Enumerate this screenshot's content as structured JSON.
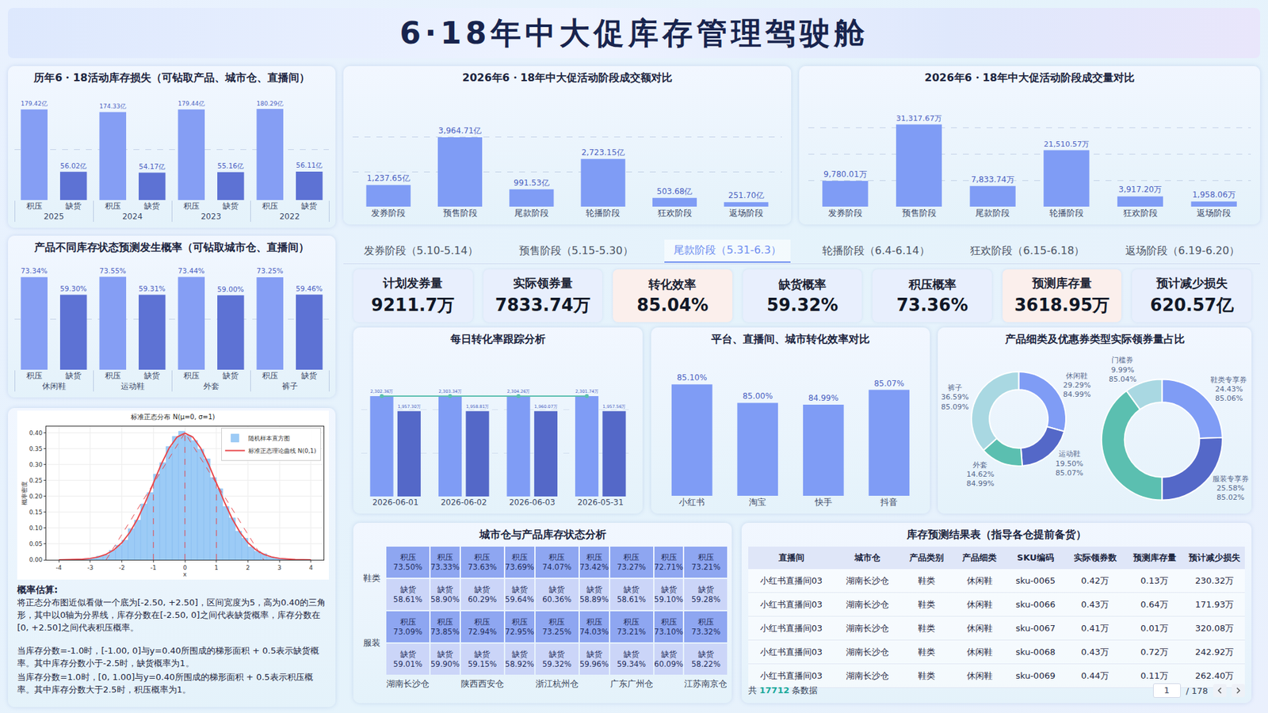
{
  "title": "6·18年中大促库存管理驾驶舱",
  "chart_data": [
    {
      "type": "bar",
      "title": "历年6・18活动库存损失（可钻取产品、城市仓、直播间）",
      "groups": [
        "2025",
        "2025",
        "2024",
        "2024",
        "2023",
        "2023",
        "2022",
        "2022"
      ],
      "categories": [
        "积压",
        "缺货",
        "缺货",
        "积压",
        "积压",
        "缺货",
        "积压",
        "缺货"
      ],
      "values": [
        179.42,
        56.02,
        54.17,
        174.33,
        179.44,
        55.16,
        180.29,
        56.11
      ],
      "value_labels": [
        "179.42亿",
        "56.02亿",
        "54.17亿",
        "174.33亿",
        "179.44亿",
        "55.16亿",
        "180.29亿",
        "56.11亿"
      ],
      "colors": [
        "#859ef4",
        "#5d72d4",
        "#5d72d4",
        "#859ef4",
        "#859ef4",
        "#5d72d4",
        "#859ef4",
        "#5d72d4"
      ],
      "ylim": [
        0,
        200
      ],
      "yticks": [
        0,
        100,
        200
      ],
      "grid": true,
      "tick_labels": "x",
      "data_labels": true
    },
    {
      "type": "bar",
      "title": "产品不同库存状态预测发生概率（可钻取城市仓、直播间）",
      "groups": [
        "休闲鞋",
        "休闲鞋",
        "运动鞋",
        "运动鞋",
        "外套",
        "外套",
        "裤子",
        "裤子"
      ],
      "categories": [
        "积压",
        "缺货",
        "积压",
        "缺货",
        "缺货",
        "积压",
        "积压",
        "缺货"
      ],
      "values": [
        73.34,
        59.3,
        73.55,
        59.31,
        59.0,
        73.44,
        73.25,
        59.46
      ],
      "value_labels": [
        "73.34%",
        "59.30%",
        "73.55%",
        "59.31%",
        "59.00%",
        "73.44%",
        "73.25%",
        "59.46%"
      ],
      "colors": [
        "#859ef4",
        "#5d72d4",
        "#859ef4",
        "#5d72d4",
        "#5d72d4",
        "#859ef4",
        "#859ef4",
        "#5d72d4"
      ],
      "ylim": [
        0,
        80
      ],
      "yticks": [
        0,
        40,
        80
      ],
      "grid": true,
      "tick_labels": "x",
      "data_labels": true
    },
    {
      "type": "bar",
      "title": "2026年6・18年中大促活动阶段成交额对比",
      "categories": [
        "发券阶段",
        "预售阶段",
        "尾款阶段",
        "轮播阶段",
        "狂欢阶段",
        "返场阶段"
      ],
      "values": [
        1237.65,
        3964.71,
        991.53,
        2723.15,
        503.68,
        251.7
      ],
      "value_labels": [
        "1,237.65亿",
        "3,964.71亿",
        "991.53亿",
        "2,723.15亿",
        "503.68亿",
        "251.70亿"
      ],
      "color": "#7f9cf5",
      "ylim": [
        0,
        6000
      ],
      "yticks": [
        0,
        2000,
        4000,
        6000
      ],
      "grid": true,
      "tick_labels": "x",
      "data_labels": true
    },
    {
      "type": "bar",
      "title": "2026年6・18年中大促活动阶段成交量对比",
      "categories": [
        "发券阶段",
        "预售阶段",
        "尾款阶段",
        "轮播阶段",
        "狂欢阶段",
        "返场阶段"
      ],
      "values": [
        9780.01,
        31317.67,
        7833.74,
        21510.57,
        3917.2,
        1958.06
      ],
      "value_labels": [
        "9,780.01万",
        "31,317.67万",
        "7,833.74万",
        "21,510.57万",
        "3,917.20万",
        "1,958.06万"
      ],
      "color": "#7f9cf5",
      "ylim": [
        0,
        40000
      ],
      "yticks": [
        0,
        10000,
        20000,
        30000,
        40000
      ],
      "grid": true,
      "tick_labels": "x",
      "data_labels": true
    },
    {
      "type": "histogram",
      "title": "标准正态分布 N(μ=0, σ=1)",
      "x_label": "x",
      "y_label": "概率密度",
      "series": [
        {
          "type": "histogram",
          "name": "随机样本直方图",
          "color": "#9ccbf6",
          "bins": [
            -4,
            -3.8,
            -3.6,
            -3.4,
            -3.2,
            -3,
            -2.8,
            -2.6,
            -2.4,
            -2.2,
            -2,
            -1.8,
            -1.6,
            -1.4,
            -1.2,
            -1,
            -0.8,
            -0.6,
            -0.4,
            -0.2,
            0,
            0.2,
            0.4,
            0.6,
            0.8,
            1,
            1.2,
            1.4,
            1.6,
            1.8,
            2,
            2.2,
            2.4,
            2.6,
            2.8,
            3,
            3.2,
            3.4,
            3.6,
            3.8,
            4
          ],
          "counts": [
            0.0,
            0.001,
            0.002,
            0.003,
            0.004,
            0.006,
            0.012,
            0.016,
            0.03,
            0.046,
            0.062,
            0.098,
            0.125,
            0.176,
            0.212,
            0.27,
            0.306,
            0.357,
            0.389,
            0.405,
            0.392,
            0.376,
            0.348,
            0.318,
            0.259,
            0.224,
            0.168,
            0.132,
            0.09,
            0.068,
            0.041,
            0.027,
            0.019,
            0.009,
            0.006,
            0.004,
            0.002,
            0.001,
            0.001,
            0.0
          ]
        },
        {
          "type": "line",
          "name": "标准正态理论曲线 N(0,1)",
          "color": "#e8464a",
          "line_style": "solid",
          "x": [
            -4,
            -3.75,
            -3.5,
            -3.25,
            -3,
            -2.75,
            -2.5,
            -2.25,
            -2,
            -1.75,
            -1.5,
            -1.25,
            -1,
            -0.75,
            -0.5,
            -0.25,
            0,
            0.25,
            0.5,
            0.75,
            1,
            1.25,
            1.5,
            1.75,
            2,
            2.25,
            2.5,
            2.75,
            3,
            3.25,
            3.5,
            3.75,
            4
          ],
          "values": [
            0.0001,
            0.0004,
            0.0009,
            0.002,
            0.0044,
            0.0091,
            0.0175,
            0.0317,
            0.054,
            0.0863,
            0.1295,
            0.1826,
            0.242,
            0.3011,
            0.3521,
            0.3867,
            0.3989,
            0.3867,
            0.3521,
            0.3011,
            0.242,
            0.1826,
            0.1295,
            0.0863,
            0.054,
            0.0317,
            0.0175,
            0.0091,
            0.0044,
            0.002,
            0.0009,
            0.0004,
            0.0001
          ]
        },
        {
          "type": "line",
          "color": "#e8464a",
          "line_style": "dashed",
          "x": [
            -2.5,
            0,
            2.5
          ],
          "values": [
            0,
            0.4,
            0
          ]
        },
        {
          "type": "line",
          "color": "#e8464a",
          "line_style": "dashed",
          "x": [
            -1,
            -1
          ],
          "values": [
            0,
            0.24
          ]
        },
        {
          "type": "line",
          "color": "#e8464a",
          "line_style": "dashed",
          "x": [
            0,
            0
          ],
          "values": [
            0,
            0.4
          ]
        },
        {
          "type": "line",
          "color": "#e8464a",
          "line_style": "dashed",
          "x": [
            1,
            1
          ],
          "values": [
            0,
            0.24
          ]
        }
      ],
      "xlim": [
        -4.4,
        4.4
      ],
      "xticks": [
        -4,
        -3,
        -2,
        -1,
        0,
        1,
        2,
        3,
        4
      ],
      "ylim": [
        0,
        0.42
      ],
      "yticks": [
        {
          "value": 0,
          "label": "0.00"
        },
        0.05,
        {
          "value": 0.1,
          "label": "0.10"
        },
        0.15,
        {
          "value": 0.2,
          "label": "0.20"
        },
        0.25,
        {
          "value": 0.3,
          "label": "0.30"
        },
        0.35,
        {
          "value": 0.4,
          "label": "0.40"
        }
      ],
      "grid": true,
      "legend": "upper right"
    },
    {
      "type": "bar",
      "title": "每日转化率跟踪分析",
      "categories": [
        "2026-06-01",
        "2026-06-02",
        "2026-06-03",
        "2026-05-31"
      ],
      "series": [
        {
          "type": "bar",
          "color": "#7f9cf5",
          "values": [
            2302.36,
            2303.34,
            2304.26,
            2301.74
          ],
          "value_labels": [
            "2,302.36万",
            "2,303.34万",
            "2,304.26万",
            "2,301.74万"
          ]
        },
        {
          "type": "bar",
          "color": "#5468c8",
          "values": [
            1957.3,
            1958.81,
            1960.07,
            1957.56
          ],
          "value_labels": [
            "1,957.30万",
            "1,958.81万",
            "1,960.07万",
            "1,957.56万"
          ]
        },
        {
          "type": "line",
          "color": "#5bbfb0",
          "marker": "circle",
          "values": [
            2302.36,
            2303.34,
            2304.26,
            2301.74
          ]
        }
      ],
      "ylim": [
        0,
        3000
      ],
      "yticks": [
        0,
        1000,
        2000,
        3000
      ],
      "grid": true,
      "tick_labels": "x",
      "data_labels": true
    },
    {
      "type": "bar",
      "title": "平台、直播间、城市转化效率对比",
      "categories": [
        "小红书",
        "淘宝",
        "快手",
        "抖音"
      ],
      "values": [
        85.1,
        85.0,
        84.99,
        85.07
      ],
      "value_labels": [
        "85.10%",
        "85.00%",
        "84.99%",
        "85.07%"
      ],
      "color": "#7f9cf5",
      "ylim": [
        84.5,
        85.2
      ],
      "yticks": [
        84.5,
        85.2
      ],
      "grid": false,
      "tick_labels": "x",
      "data_labels": true
    },
    {
      "type": "pie",
      "title": "产品细类及优惠券类型实际领券量占比",
      "categories": [
        "休闲鞋",
        "运动鞋",
        "外套",
        "裤子"
      ],
      "values": [
        29.29,
        19.5,
        14.62,
        36.59
      ],
      "value_labels": [
        "29.29%",
        "19.50%",
        "14.62%",
        "36.59%"
      ],
      "rate_labels": [
        "84.99%",
        "85.07%",
        "84.99%",
        "85.09%"
      ],
      "colors": [
        "#7f9cf5",
        "#5468c8",
        "#5bbfb0",
        "#a9d8e2"
      ],
      "data_labels": true
    },
    {
      "type": "pie",
      "categories": [
        "鞋类专享券",
        "服装专享券",
        null,
        "门槛券"
      ],
      "values": [
        24.43,
        25.58,
        40.0,
        9.99
      ],
      "value_labels": [
        "24.43%",
        "25.58%",
        null,
        "9.99%"
      ],
      "rate_labels": [
        "85.06%",
        "85.02%",
        null,
        "85.04%"
      ],
      "colors": [
        "#7f9cf5",
        "#5468c8",
        "#5bbfb0",
        "#a9d8e2"
      ],
      "data_labels": true
    }
  ],
  "tabs": {
    "items": [
      "发券阶段（5.10-5.14）",
      "预售阶段（5.15-5.30）",
      "尾款阶段（5.31-6.3）",
      "轮播阶段（6.4-6.14）",
      "狂欢阶段（6.15-6.18）",
      "返场阶段（6.19-6.20）"
    ],
    "selected": "尾款阶段（5.31-6.3）"
  },
  "kpis": [
    {
      "label": "计划发券量",
      "value": "9211.7万",
      "color": "#e8effd"
    },
    {
      "label": "实际领券量",
      "value": "7833.74万",
      "color": "#e8effd"
    },
    {
      "label": "转化效率",
      "value": "85.04%",
      "color": "#fbefec"
    },
    {
      "label": "缺货概率",
      "value": "59.32%",
      "color": "#e8effd"
    },
    {
      "label": "积压概率",
      "value": "73.36%",
      "color": "#e8effd"
    },
    {
      "label": "预测库存量",
      "value": "3618.95万",
      "color": "#fbefec"
    },
    {
      "label": "预计减少损失",
      "value": "620.57亿",
      "color": "#e8effd"
    }
  ],
  "probability_note": {
    "heading": "概率估算:",
    "paragraphs": [
      "将正态分布图近似看做一个底为[-2.50, +2.50]，区间宽度为5，高为0.40的三角形，其中以0轴为分界线，库存分数在[-2.50, 0]之间代表缺货概率，库存分数在[0, +2.50]之间代表积压概率。",
      "当库存分数=-1.0时，[-1.00, 0]与y=0.40所围成的梯形面积 + 0.5表示缺货概率。其中库存分数小于-2.5时，缺货概率为1。",
      "当库存分数=1.0时，[0, 1.00]与y=0.40所围成的梯形面积 + 0.5表示积压概率。其中库存分数大于2.5时，积压概率为1。"
    ]
  },
  "heat_table": {
    "title": "城市仓与产品库存状态分析",
    "columns": [
      "湖南长沙仓",
      null,
      "陕西西安仓",
      null,
      "浙江杭州仓",
      null,
      "广东广州仓",
      null,
      "江苏南京仓"
    ],
    "groups": [
      {
        "name": "鞋类",
        "rows": [
          {
            "label": "积压",
            "cells": [
              "73.50%",
              "73.33%",
              "73.63%",
              "73.69%",
              "74.07%",
              "73.42%",
              "73.27%",
              "72.71%",
              "73.21%"
            ]
          },
          {
            "label": "缺货",
            "cells": [
              "58.61%",
              "58.90%",
              "60.29%",
              "59.64%",
              "60.36%",
              "58.89%",
              "58.61%",
              "59.10%",
              "59.28%"
            ]
          }
        ]
      },
      {
        "name": "服装",
        "rows": [
          {
            "label": "积压",
            "cells": [
              "73.09%",
              "73.85%",
              "72.94%",
              "72.95%",
              "73.25%",
              "74.03%",
              "73.21%",
              "73.10%",
              "73.32%"
            ]
          },
          {
            "label": "缺货",
            "cells": [
              "59.01%",
              "59.90%",
              "59.15%",
              "58.92%",
              "59.32%",
              "59.96%",
              "59.34%",
              "60.09%",
              "58.22%"
            ]
          }
        ]
      }
    ]
  },
  "forecast_table": {
    "title": "库存预测结果表（指导各仓提前备货）",
    "header": [
      "直播间",
      "城市仓",
      "产品类别",
      "产品细类",
      "SKU编码",
      "实际领券数",
      "预测库存量",
      "预计减少损失"
    ],
    "rows": [
      [
        "小红书直播间03",
        "湖南长沙仓",
        "鞋类",
        "休闲鞋",
        "sku-0065",
        "0.42万",
        "0.13万",
        "230.32万"
      ],
      [
        "小红书直播间03",
        "湖南长沙仓",
        "鞋类",
        "休闲鞋",
        "sku-0066",
        "0.43万",
        "0.64万",
        "171.93万"
      ],
      [
        "小红书直播间03",
        "湖南长沙仓",
        "鞋类",
        "休闲鞋",
        "sku-0067",
        "0.41万",
        "0.01万",
        "320.08万"
      ],
      [
        "小红书直播间03",
        "湖南长沙仓",
        "鞋类",
        "休闲鞋",
        "sku-0068",
        "0.43万",
        "0.72万",
        "242.92万"
      ],
      [
        "小红书直播间03",
        "湖南长沙仓",
        "鞋类",
        "休闲鞋",
        "sku-0069",
        "0.44万",
        "0.11万",
        "262.40万"
      ]
    ],
    "footer": {
      "prefix": "共",
      "count": "17712",
      "suffix": "条数据",
      "page": "1",
      "pages": "/ 178"
    }
  }
}
